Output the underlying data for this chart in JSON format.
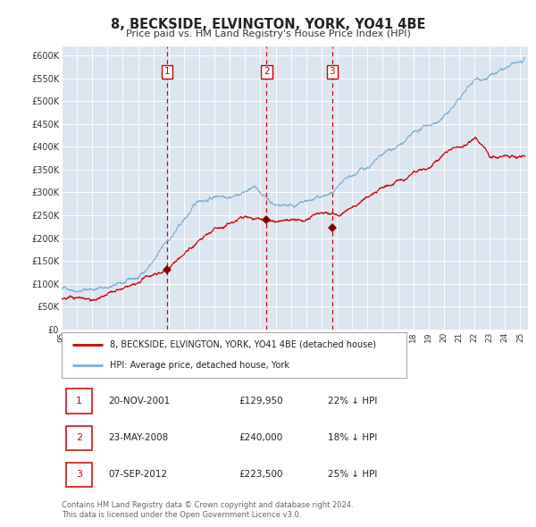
{
  "title": "8, BECKSIDE, ELVINGTON, YORK, YO41 4BE",
  "subtitle": "Price paid vs. HM Land Registry's House Price Index (HPI)",
  "plot_bg_color": "#dce6f1",
  "red_line_color": "#cc0000",
  "blue_line_color": "#7bafd4",
  "grid_color": "#ffffff",
  "ylim": [
    0,
    620000
  ],
  "yticks": [
    0,
    50000,
    100000,
    150000,
    200000,
    250000,
    300000,
    350000,
    400000,
    450000,
    500000,
    550000,
    600000
  ],
  "ytick_labels": [
    "£0",
    "£50K",
    "£100K",
    "£150K",
    "£200K",
    "£250K",
    "£300K",
    "£350K",
    "£400K",
    "£450K",
    "£500K",
    "£550K",
    "£600K"
  ],
  "sale_dates_num": [
    2001.9,
    2008.4,
    2012.7
  ],
  "sale_prices": [
    129950,
    240000,
    223500
  ],
  "sale_labels": [
    "1",
    "2",
    "3"
  ],
  "sale_pct": [
    "22% ↓ HPI",
    "18% ↓ HPI",
    "25% ↓ HPI"
  ],
  "sale_date_strs": [
    "20-NOV-2001",
    "23-MAY-2008",
    "07-SEP-2012"
  ],
  "legend_red": "8, BECKSIDE, ELVINGTON, YORK, YO41 4BE (detached house)",
  "legend_blue": "HPI: Average price, detached house, York",
  "footer": "Contains HM Land Registry data © Crown copyright and database right 2024.\nThis data is licensed under the Open Government Licence v3.0.",
  "xmin": 1995.0,
  "xmax": 2025.5,
  "xticks": [
    1995,
    1996,
    1997,
    1998,
    1999,
    2000,
    2001,
    2002,
    2003,
    2004,
    2005,
    2006,
    2007,
    2008,
    2009,
    2010,
    2011,
    2012,
    2013,
    2014,
    2015,
    2016,
    2017,
    2018,
    2019,
    2020,
    2021,
    2022,
    2023,
    2024,
    2025
  ]
}
